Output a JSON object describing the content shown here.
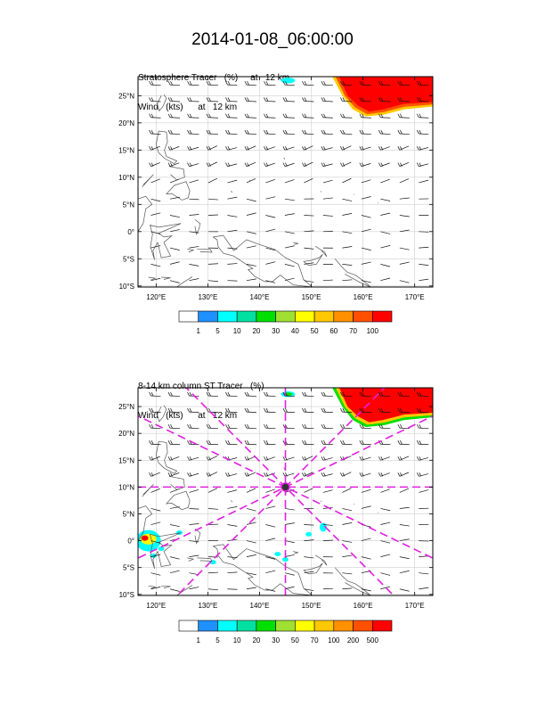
{
  "title": "2014-01-08_06:00:00",
  "colors": {
    "land": "#555555",
    "grid": "#cfcfcf",
    "wind": "#111111",
    "cross": "#e020e0"
  },
  "chart_data": [
    {
      "type": "heatmap",
      "subtitle_lines": [
        "Stratosphere Tracer   (%)     at   12 km",
        "Wind   (kts)      at   12 km"
      ],
      "x_ticks": [
        {
          "v": 120,
          "label": "120°E"
        },
        {
          "v": 130,
          "label": "130°E"
        },
        {
          "v": 140,
          "label": "140°E"
        },
        {
          "v": 150,
          "label": "150°E"
        },
        {
          "v": 160,
          "label": "160°E"
        },
        {
          "v": 170,
          "label": "170°E"
        }
      ],
      "y_ticks": [
        {
          "v": 25,
          "label": "25°N"
        },
        {
          "v": 20,
          "label": "20°N"
        },
        {
          "v": 15,
          "label": "15°N"
        },
        {
          "v": 10,
          "label": "10°N"
        },
        {
          "v": 5,
          "label": "5°N"
        },
        {
          "v": 0,
          "label": "0°"
        },
        {
          "v": -5,
          "label": "5°S"
        },
        {
          "v": -10,
          "label": "10°S"
        }
      ],
      "xlim": [
        116.5,
        173.5
      ],
      "ylim": [
        -10.2,
        28.5
      ],
      "colorbar": {
        "labels": [
          "1",
          "5",
          "10",
          "20",
          "30",
          "40",
          "50",
          "60",
          "70",
          "100"
        ],
        "colors": [
          "#ffffff",
          "#1e90ff",
          "#00ffff",
          "#00e0a0",
          "#00e000",
          "#a0e030",
          "#ffff00",
          "#ffc800",
          "#ff9000",
          "#ff5000",
          "#ff0000"
        ]
      },
      "features": [
        {
          "name": "high-tracer-region",
          "color_levels": [
            7,
            9,
            10
          ],
          "lon_range": [
            154,
            173.5
          ],
          "lat_range": [
            20.5,
            28.5
          ]
        },
        {
          "name": "small-blob",
          "color_levels": [
            2
          ],
          "lon": 145.5,
          "lat": 27.8
        }
      ],
      "cross_marker": null
    },
    {
      "type": "heatmap",
      "subtitle_lines": [
        "8-14 km column ST Tracer   (%)",
        "Wind   (kts)      at   12 km"
      ],
      "x_ticks": [
        {
          "v": 120,
          "label": "120°E"
        },
        {
          "v": 130,
          "label": "130°E"
        },
        {
          "v": 140,
          "label": "140°E"
        },
        {
          "v": 150,
          "label": "150°E"
        },
        {
          "v": 160,
          "label": "160°E"
        },
        {
          "v": 170,
          "label": "170°E"
        }
      ],
      "y_ticks": [
        {
          "v": 25,
          "label": "25°N"
        },
        {
          "v": 20,
          "label": "20°N"
        },
        {
          "v": 15,
          "label": "15°N"
        },
        {
          "v": 10,
          "label": "10°N"
        },
        {
          "v": 5,
          "label": "5°N"
        },
        {
          "v": 0,
          "label": "0°"
        },
        {
          "v": -5,
          "label": "5°S"
        },
        {
          "v": -10,
          "label": "10°S"
        }
      ],
      "xlim": [
        116.5,
        173.5
      ],
      "ylim": [
        -10.2,
        28.5
      ],
      "colorbar": {
        "labels": [
          "1",
          "5",
          "10",
          "20",
          "30",
          "50",
          "70",
          "100",
          "200",
          "500"
        ],
        "colors": [
          "#ffffff",
          "#1e90ff",
          "#00ffff",
          "#00e0a0",
          "#00e000",
          "#a0e030",
          "#ffff00",
          "#ffc800",
          "#ff9000",
          "#ff5000",
          "#ff0000"
        ]
      },
      "features": [
        {
          "name": "high-tracer-region",
          "color_levels": [
            4,
            7,
            10
          ],
          "lon_range": [
            153,
            173.5
          ],
          "lat_range": [
            21,
            28.5
          ]
        },
        {
          "name": "small-blob",
          "color_levels": [
            2,
            4
          ],
          "lon": 145.5,
          "lat": 27.3
        },
        {
          "name": "equatorial-patch",
          "color_levels": [
            2,
            6,
            10
          ],
          "lon": 117.5,
          "lat": 0
        }
      ],
      "cross_marker": {
        "lon": 145,
        "lat": 10
      }
    }
  ]
}
